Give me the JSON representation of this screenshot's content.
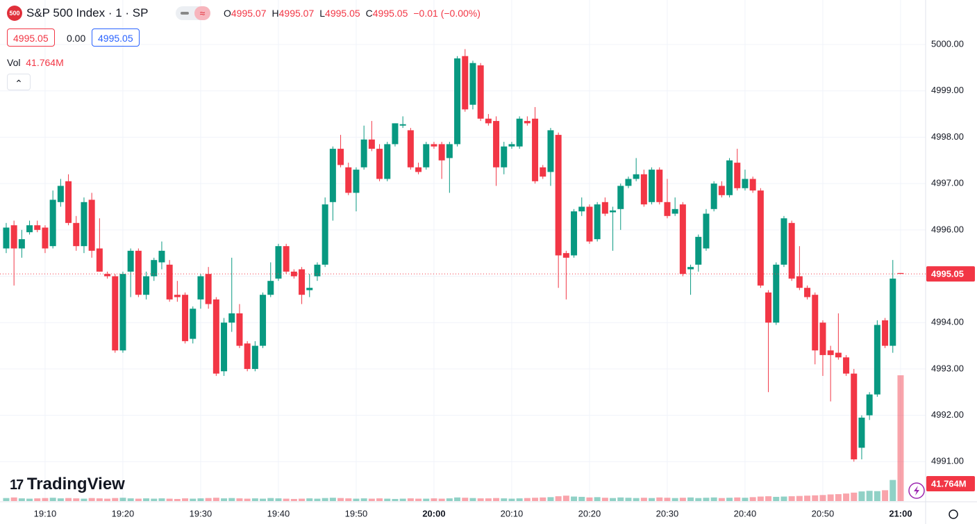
{
  "header": {
    "icon": "500",
    "symbol": "S&P 500 Index · 1 · SP",
    "ohlc": [
      {
        "label": "O",
        "value": "4995.07"
      },
      {
        "label": "H",
        "value": "4995.07"
      },
      {
        "label": "L",
        "value": "4995.05"
      },
      {
        "label": "C",
        "value": "4995.05"
      }
    ],
    "change": "−0.01 (−0.00%)",
    "bid": "4995.05",
    "spread": "0.00",
    "ask": "4995.05"
  },
  "logo": "TradingView",
  "chart_data": {
    "type": "candlestick",
    "up_color": "#089981",
    "down_color": "#f23645",
    "grid": true,
    "categories": [
      null,
      null,
      null,
      null,
      null,
      "19:10",
      null,
      null,
      null,
      null,
      null,
      null,
      null,
      null,
      null,
      "19:20",
      null,
      null,
      null,
      null,
      null,
      null,
      null,
      null,
      null,
      "19:30",
      null,
      null,
      null,
      null,
      null,
      null,
      null,
      null,
      null,
      "19:40",
      null,
      null,
      null,
      null,
      null,
      null,
      null,
      null,
      null,
      "19:50",
      null,
      null,
      null,
      null,
      null,
      null,
      null,
      null,
      null,
      "20:00",
      null,
      null,
      null,
      null,
      null,
      null,
      null,
      null,
      null,
      "20:10",
      null,
      null,
      null,
      null,
      null,
      null,
      null,
      null,
      null,
      "20:20",
      null,
      null,
      null,
      null,
      null,
      null,
      null,
      null,
      null,
      "20:30",
      null,
      null,
      null,
      null,
      null,
      null,
      null,
      null,
      null,
      "20:40",
      null,
      null,
      null,
      null,
      null,
      null,
      null,
      null,
      null,
      "20:50",
      null,
      null,
      null,
      null,
      null,
      null,
      null,
      null,
      null,
      "21:00"
    ],
    "candles": [
      [
        4995.6,
        4996.15,
        4995.5,
        4996.05
      ],
      [
        4996.1,
        4996.2,
        4994.8,
        4995.6
      ],
      [
        4995.6,
        4996.0,
        4995.4,
        4995.8
      ],
      [
        4995.95,
        4996.2,
        4995.9,
        4996.1
      ],
      [
        4996.1,
        4996.2,
        4995.95,
        4996.0
      ],
      [
        4996.05,
        4996.1,
        4995.5,
        4995.6
      ],
      [
        4995.65,
        4996.85,
        4995.6,
        4996.65
      ],
      [
        4996.6,
        4997.1,
        4996.5,
        4996.95
      ],
      [
        4997.05,
        4997.2,
        4996.1,
        4996.15
      ],
      [
        4996.15,
        4996.3,
        4995.55,
        4995.65
      ],
      [
        4995.65,
        4996.7,
        4995.5,
        4996.6
      ],
      [
        4996.65,
        4996.8,
        4995.4,
        4995.55
      ],
      [
        4995.6,
        4996.25,
        4995.1,
        4995.1
      ],
      [
        4995.05,
        4995.1,
        4994.95,
        4995.0
      ],
      [
        4995.0,
        4995.05,
        4993.35,
        4993.4
      ],
      [
        4993.4,
        4995.1,
        4993.35,
        4995.05
      ],
      [
        4995.1,
        4995.6,
        4994.55,
        4995.55
      ],
      [
        4995.55,
        4995.6,
        4994.55,
        4994.6
      ],
      [
        4994.6,
        4995.1,
        4994.5,
        4995.0
      ],
      [
        4995.0,
        4995.4,
        4994.9,
        4995.35
      ],
      [
        4995.3,
        4995.75,
        4995.15,
        4995.55
      ],
      [
        4995.25,
        4995.35,
        4994.45,
        4994.5
      ],
      [
        4994.6,
        4994.9,
        4994.45,
        4994.55
      ],
      [
        4994.6,
        4994.65,
        4993.55,
        4993.6
      ],
      [
        4993.65,
        4994.35,
        4993.55,
        4994.3
      ],
      [
        4994.5,
        4995.05,
        4994.3,
        4995.0
      ],
      [
        4995.05,
        4995.2,
        4994.3,
        4994.4
      ],
      [
        4994.5,
        4994.55,
        4992.85,
        4992.9
      ],
      [
        4992.95,
        4994.1,
        4992.85,
        4994.0
      ],
      [
        4994.0,
        4995.4,
        4993.8,
        4994.2
      ],
      [
        4994.2,
        4994.4,
        4993.45,
        4993.5
      ],
      [
        4993.55,
        4993.6,
        4992.95,
        4993.0
      ],
      [
        4993.0,
        4993.6,
        4992.95,
        4993.5
      ],
      [
        4993.5,
        4994.65,
        4993.45,
        4994.6
      ],
      [
        4994.6,
        4995.3,
        4994.55,
        4994.9
      ],
      [
        4994.95,
        4995.7,
        4994.9,
        4995.65
      ],
      [
        4995.65,
        4995.7,
        4995.05,
        4995.1
      ],
      [
        4995.1,
        4995.15,
        4994.95,
        4995.0
      ],
      [
        4995.15,
        4995.2,
        4994.4,
        4994.6
      ],
      [
        4994.7,
        4995.05,
        4994.55,
        4994.75
      ],
      [
        4995.0,
        4995.3,
        4994.9,
        4995.25
      ],
      [
        4995.25,
        4996.7,
        4995.2,
        4996.55
      ],
      [
        4996.6,
        4997.8,
        4996.2,
        4997.75
      ],
      [
        4997.75,
        4998.05,
        4997.35,
        4997.4
      ],
      [
        4997.35,
        4997.45,
        4996.75,
        4996.8
      ],
      [
        4996.8,
        4997.35,
        4996.4,
        4997.3
      ],
      [
        4997.35,
        4998.25,
        4997.3,
        4997.95
      ],
      [
        4997.95,
        4998.35,
        4997.7,
        4997.75
      ],
      [
        4997.75,
        4997.85,
        4997.05,
        4997.1
      ],
      [
        4997.1,
        4997.9,
        4997.05,
        4997.85
      ],
      [
        4997.85,
        4998.3,
        4997.8,
        4998.3
      ],
      [
        4998.25,
        4998.45,
        4998.2,
        4998.28
      ],
      [
        4998.15,
        4998.2,
        4997.3,
        4997.35
      ],
      [
        4997.35,
        4997.45,
        4997.2,
        4997.25
      ],
      [
        4997.35,
        4997.9,
        4997.3,
        4997.85
      ],
      [
        4997.85,
        4997.9,
        4997.75,
        4997.8
      ],
      [
        4997.85,
        4997.9,
        4997.1,
        4997.5
      ],
      [
        4997.55,
        4997.9,
        4996.8,
        4997.85
      ],
      [
        4997.85,
        4999.75,
        4997.8,
        4999.7
      ],
      [
        4999.75,
        4999.9,
        4998.55,
        4998.6
      ],
      [
        4998.7,
        4999.65,
        4998.6,
        4999.6
      ],
      [
        4999.55,
        4999.6,
        4998.35,
        4998.4
      ],
      [
        4998.4,
        4998.5,
        4998.25,
        4998.3
      ],
      [
        4998.35,
        4998.45,
        4996.95,
        4997.35
      ],
      [
        4997.35,
        4997.9,
        4997.2,
        4997.8
      ],
      [
        4997.8,
        4997.9,
        4997.75,
        4997.85
      ],
      [
        4997.8,
        4998.45,
        4997.75,
        4998.4
      ],
      [
        4998.35,
        4998.45,
        4998.25,
        4998.3
      ],
      [
        4998.4,
        4998.65,
        4997.0,
        4997.05
      ],
      [
        4997.35,
        4997.4,
        4997.1,
        4997.15
      ],
      [
        4997.25,
        4998.2,
        4996.95,
        4998.15
      ],
      [
        4998.05,
        4998.1,
        4994.75,
        4995.45
      ],
      [
        4995.5,
        4995.55,
        4994.5,
        4995.4
      ],
      [
        4995.45,
        4996.45,
        4995.4,
        4996.4
      ],
      [
        4996.4,
        4996.7,
        4996.3,
        4996.5
      ],
      [
        4996.5,
        4996.55,
        4995.7,
        4995.75
      ],
      [
        4995.8,
        4996.6,
        4995.75,
        4996.55
      ],
      [
        4996.6,
        4996.7,
        4996.3,
        4996.35
      ],
      [
        4996.38,
        4996.5,
        4995.55,
        4996.42
      ],
      [
        4996.45,
        4997.0,
        4996.0,
        4996.95
      ],
      [
        4996.95,
        4997.15,
        4996.9,
        4997.1
      ],
      [
        4997.1,
        4997.55,
        4997.05,
        4997.2
      ],
      [
        4997.2,
        4997.3,
        4996.5,
        4996.55
      ],
      [
        4996.6,
        4997.35,
        4996.55,
        4997.3
      ],
      [
        4997.3,
        4997.35,
        4996.55,
        4996.6
      ],
      [
        4996.6,
        4997.1,
        4996.25,
        4996.3
      ],
      [
        4996.35,
        4996.7,
        4996.3,
        4996.45
      ],
      [
        4996.55,
        4996.6,
        4995.0,
        4995.05
      ],
      [
        4995.15,
        4995.25,
        4994.6,
        4995.2
      ],
      [
        4995.25,
        4995.9,
        4995.1,
        4995.85
      ],
      [
        4995.6,
        4996.45,
        4995.55,
        4996.35
      ],
      [
        4996.45,
        4997.05,
        4996.4,
        4997.0
      ],
      [
        4996.95,
        4997.05,
        4996.7,
        4996.75
      ],
      [
        4996.75,
        4997.55,
        4996.7,
        4997.5
      ],
      [
        4997.45,
        4997.75,
        4996.85,
        4996.9
      ],
      [
        4996.9,
        4997.3,
        4996.85,
        4997.1
      ],
      [
        4997.1,
        4997.15,
        4996.8,
        4996.85
      ],
      [
        4996.85,
        4996.9,
        4994.75,
        4994.8
      ],
      [
        4994.65,
        4994.7,
        4992.5,
        4994.0
      ],
      [
        4994.0,
        4995.3,
        4993.95,
        4995.25
      ],
      [
        4995.25,
        4996.3,
        4995.2,
        4996.25
      ],
      [
        4996.15,
        4996.2,
        4994.9,
        4994.95
      ],
      [
        4995.0,
        4995.65,
        4994.7,
        4994.75
      ],
      [
        4994.75,
        4994.8,
        4994.5,
        4994.55
      ],
      [
        4994.6,
        4994.65,
        4993.1,
        4993.4
      ],
      [
        4994.0,
        4994.05,
        4992.85,
        4993.3
      ],
      [
        4993.4,
        4993.5,
        4992.3,
        4993.3
      ],
      [
        4993.35,
        4994.2,
        4993.2,
        4993.25
      ],
      [
        4993.25,
        4993.3,
        4992.85,
        4992.9
      ],
      [
        4992.9,
        4993.0,
        4991.0,
        4991.05
      ],
      [
        4991.3,
        4992.0,
        4991.05,
        4991.95
      ],
      [
        4992.0,
        4992.5,
        4991.9,
        4992.45
      ],
      [
        4992.45,
        4994.05,
        4992.4,
        4993.95
      ],
      [
        4994.05,
        4994.1,
        4993.45,
        4993.5
      ],
      [
        4993.5,
        4995.35,
        4993.35,
        4994.95
      ],
      [
        4995.07,
        4995.07,
        4995.05,
        4995.05
      ]
    ],
    "volume": {
      "name": "Vol",
      "last_label": "41.764M",
      "values": [
        1.0,
        1.2,
        0.9,
        0.8,
        0.9,
        1.0,
        1.1,
        0.9,
        1.0,
        0.9,
        0.8,
        1.0,
        0.9,
        0.8,
        1.0,
        1.1,
        0.9,
        0.8,
        0.9,
        0.8,
        0.9,
        0.8,
        0.7,
        0.9,
        0.8,
        0.9,
        1.0,
        1.1,
        0.9,
        1.0,
        0.9,
        0.8,
        0.9,
        0.8,
        1.0,
        0.9,
        0.8,
        0.7,
        0.8,
        0.9,
        0.8,
        1.0,
        1.1,
        1.0,
        0.9,
        0.8,
        0.9,
        0.8,
        0.9,
        0.8,
        0.7,
        0.8,
        0.9,
        0.8,
        0.8,
        0.9,
        0.8,
        0.9,
        1.2,
        1.1,
        1.0,
        0.9,
        0.9,
        1.0,
        0.9,
        0.8,
        0.9,
        1.0,
        1.1,
        1.2,
        1.3,
        1.6,
        1.8,
        1.5,
        1.4,
        1.2,
        1.3,
        1.1,
        1.0,
        1.2,
        1.1,
        1.0,
        1.1,
        1.0,
        1.2,
        1.1,
        1.0,
        1.1,
        1.2,
        1.0,
        1.1,
        1.2,
        1.0,
        1.1,
        1.2,
        1.1,
        1.3,
        1.5,
        1.6,
        1.4,
        1.5,
        1.6,
        1.7,
        1.8,
        1.9,
        2.0,
        2.2,
        2.3,
        2.5,
        2.8,
        3.2,
        3.4,
        3.3,
        3.6,
        7.0,
        41.764
      ]
    },
    "last_price": 4995.05,
    "ylim": [
      4990.15,
      5000.96
    ],
    "yticks": [
      {
        "value": 4991,
        "label": "4991.00"
      },
      {
        "value": 4992,
        "label": "4992.00"
      },
      {
        "value": 4993,
        "label": "4993.00"
      },
      {
        "value": 4994,
        "label": "4994.00"
      },
      {
        "value": 4995,
        "label": "4995.00"
      },
      {
        "value": 4996,
        "label": "4996.00"
      },
      {
        "value": 4997,
        "label": "4997.00"
      },
      {
        "value": 4998,
        "label": "4998.00"
      },
      {
        "value": 4999,
        "label": "4999.00"
      },
      {
        "value": 5000,
        "label": "5000.00"
      }
    ]
  }
}
